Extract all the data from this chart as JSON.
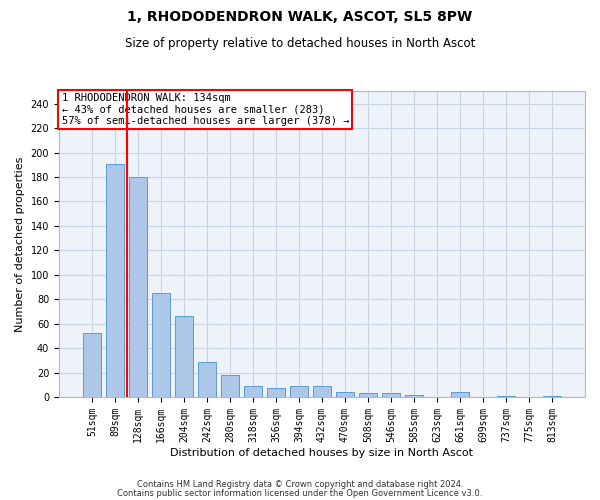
{
  "title": "1, RHODODENDRON WALK, ASCOT, SL5 8PW",
  "subtitle": "Size of property relative to detached houses in North Ascot",
  "xlabel": "Distribution of detached houses by size in North Ascot",
  "ylabel": "Number of detached properties",
  "categories": [
    "51sqm",
    "89sqm",
    "128sqm",
    "166sqm",
    "204sqm",
    "242sqm",
    "280sqm",
    "318sqm",
    "356sqm",
    "394sqm",
    "432sqm",
    "470sqm",
    "508sqm",
    "546sqm",
    "585sqm",
    "623sqm",
    "661sqm",
    "699sqm",
    "737sqm",
    "775sqm",
    "813sqm"
  ],
  "values": [
    52,
    191,
    180,
    85,
    66,
    29,
    18,
    9,
    7,
    9,
    9,
    4,
    3,
    3,
    2,
    0,
    4,
    0,
    1,
    0,
    1
  ],
  "bar_color": "#aec6e8",
  "bar_edge_color": "#5b9bd5",
  "vline_x": 1.5,
  "vline_color": "red",
  "annotation_text": "1 RHODODENDRON WALK: 134sqm\n← 43% of detached houses are smaller (283)\n57% of semi-detached houses are larger (378) →",
  "annotation_box_color": "white",
  "annotation_box_edge": "red",
  "ylim": [
    0,
    250
  ],
  "yticks": [
    0,
    20,
    40,
    60,
    80,
    100,
    120,
    140,
    160,
    180,
    200,
    220,
    240
  ],
  "footer1": "Contains HM Land Registry data © Crown copyright and database right 2024.",
  "footer2": "Contains public sector information licensed under the Open Government Licence v3.0.",
  "bg_color": "#eef2f9",
  "grid_color": "#c8d4e8",
  "title_fontsize": 10,
  "subtitle_fontsize": 8.5,
  "tick_fontsize": 7,
  "ylabel_fontsize": 8,
  "xlabel_fontsize": 8,
  "annotation_fontsize": 7.5
}
